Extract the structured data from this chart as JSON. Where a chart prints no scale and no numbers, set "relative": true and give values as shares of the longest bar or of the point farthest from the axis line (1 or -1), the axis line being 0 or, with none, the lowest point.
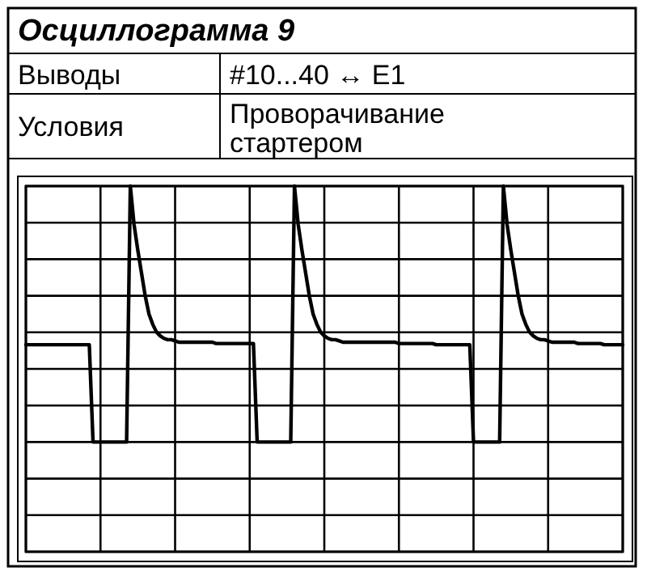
{
  "chart_data": {
    "type": "line",
    "title": "Осциллограмма 9",
    "relative": true,
    "grid": true,
    "annotations": [
      "Выводы",
      "#10...40 ↔ E1",
      "Условия",
      "Проворачивание стартером"
    ],
    "categories": [
      null,
      null,
      null,
      null,
      null,
      null,
      null,
      null,
      null,
      null,
      null,
      null,
      null,
      null,
      null,
      null,
      null,
      null,
      null,
      null,
      null,
      null,
      null,
      null,
      null,
      null,
      null,
      null,
      null,
      null,
      null,
      null,
      null,
      null,
      null,
      null,
      null,
      null,
      null,
      null,
      null,
      null,
      null,
      null,
      null,
      null,
      null,
      null,
      null,
      null,
      null,
      null,
      null,
      null,
      null,
      null,
      null,
      null,
      null,
      null,
      null,
      null,
      null,
      null,
      null,
      null,
      null,
      null,
      null,
      null,
      null,
      null,
      null,
      null,
      null,
      null,
      null,
      null,
      null,
      null,
      null,
      null,
      null,
      null,
      null,
      null,
      null,
      null,
      null,
      null,
      null,
      null,
      null,
      null,
      null,
      null,
      null,
      null,
      null,
      null,
      null,
      null,
      null,
      null,
      null,
      null,
      null,
      null,
      null,
      null,
      null,
      null,
      null,
      null,
      null,
      null,
      null,
      null,
      null,
      null,
      null,
      null,
      null,
      null,
      null,
      null,
      null,
      null,
      null,
      null,
      null,
      null,
      null,
      null,
      null,
      null,
      null,
      null,
      null,
      null,
      null,
      null,
      null,
      null,
      null,
      null,
      null,
      null,
      null,
      null,
      null,
      null,
      null,
      null,
      null,
      null,
      null,
      null,
      null,
      null,
      null
    ],
    "series": [
      {
        "color": "#000000",
        "values": [
          0.38,
          0.38,
          0.38,
          0.38,
          0.38,
          0.38,
          0.38,
          0.38,
          0.38,
          0.38,
          0.38,
          0.38,
          0.38,
          0.38,
          0.38,
          0.38,
          0.38,
          0.38,
          0,
          0,
          0,
          0,
          0,
          0,
          0,
          0,
          0,
          0,
          1,
          0.85,
          0.75,
          0.66,
          0.57,
          0.5,
          0.46,
          0.43,
          0.415,
          0.405,
          0.4,
          0.4,
          0.395,
          0.39,
          0.39,
          0.39,
          0.39,
          0.39,
          0.39,
          0.39,
          0.39,
          0.39,
          0.39,
          0.385,
          0.385,
          0.385,
          0.385,
          0.385,
          0.385,
          0.385,
          0.385,
          0.385,
          0.385,
          0.385,
          0,
          0,
          0,
          0,
          0,
          0,
          0,
          0,
          0,
          0,
          1,
          0.85,
          0.75,
          0.66,
          0.57,
          0.5,
          0.46,
          0.43,
          0.415,
          0.405,
          0.4,
          0.4,
          0.395,
          0.39,
          0.39,
          0.39,
          0.39,
          0.39,
          0.39,
          0.39,
          0.39,
          0.39,
          0.39,
          0.39,
          0.39,
          0.39,
          0.39,
          0.39,
          0.385,
          0.385,
          0.385,
          0.385,
          0.385,
          0.385,
          0.385,
          0.385,
          0.385,
          0.385,
          0.38,
          0.38,
          0.38,
          0.38,
          0.38,
          0.38,
          0.38,
          0.38,
          0.38,
          0.38,
          0,
          0,
          0,
          0,
          0,
          0,
          0,
          0,
          1,
          0.85,
          0.75,
          0.66,
          0.57,
          0.5,
          0.46,
          0.43,
          0.415,
          0.405,
          0.4,
          0.4,
          0.395,
          0.39,
          0.39,
          0.39,
          0.39,
          0.39,
          0.39,
          0.39,
          0.385,
          0.385,
          0.385,
          0.385,
          0.385,
          0.385,
          0.385,
          0.38,
          0.38,
          0.38,
          0.38,
          0.38,
          0.38
        ]
      }
    ]
  }
}
